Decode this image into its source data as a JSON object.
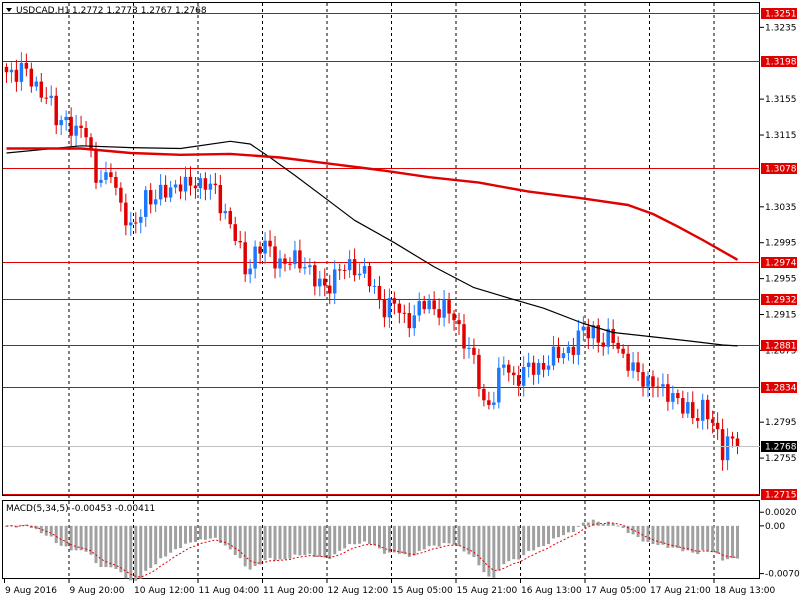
{
  "header": {
    "symbol": "USDCAD,H1",
    "ohlc": "1.2772 1.2773 1.2767 1.2768"
  },
  "macd_label": "MACD(5,34,5) -0.00453 -0.00411",
  "colors": {
    "bull": "#1e78ff",
    "bear": "#e00000",
    "level": "#e00000",
    "ma_fast": "#000000",
    "ma_slow": "#e00000",
    "grid": "#000000",
    "macd_hist": "#a0a0a0",
    "macd_signal": "#e00000"
  },
  "chart_data": [
    {
      "type": "candlestick",
      "title": "USDCAD,H1",
      "ylim": [
        1.2715,
        1.3261
      ],
      "y_ticks": [
        {
          "value": 1.3235,
          "label": "1.3235"
        },
        {
          "value": 1.3155,
          "label": "1.3155"
        },
        {
          "value": 1.3115,
          "label": "1.3115"
        },
        {
          "value": 1.3035,
          "label": "1.3035"
        },
        {
          "value": 1.2995,
          "label": "1.2995"
        },
        {
          "value": 1.2955,
          "label": "1.2955"
        },
        {
          "value": 1.2915,
          "label": "1.2915"
        },
        {
          "value": 1.2875,
          "label": "1.2875"
        },
        {
          "value": 1.2795,
          "label": "1.2795"
        },
        {
          "value": 1.2755,
          "label": "1.2755"
        }
      ],
      "levels": [
        {
          "value": 1.3251,
          "label": "1.3251"
        },
        {
          "value": 1.3198,
          "label": "1.3198"
        },
        {
          "value": 1.3078,
          "label": "1.3078"
        },
        {
          "value": 1.2974,
          "label": "1.2974"
        },
        {
          "value": 1.2932,
          "label": "1.2932"
        },
        {
          "value": 1.2881,
          "label": "1.2881"
        },
        {
          "value": 1.2834,
          "label": "1.2834"
        },
        {
          "value": 1.2715,
          "label": "1.2715"
        }
      ],
      "current_price": {
        "value": 1.2768,
        "label": "1.2768"
      },
      "x_labels": [
        "9 Aug 2016",
        "9 Aug 20:00",
        "10 Aug 12:00",
        "11 Aug 04:00",
        "11 Aug 20:00",
        "12 Aug 12:00",
        "15 Aug 05:00",
        "15 Aug 21:00",
        "16 Aug 13:00",
        "17 Aug 05:00",
        "17 Aug 21:00",
        "18 Aug 13:00"
      ],
      "close_path": [
        [
          0,
          1.3185
        ],
        [
          3,
          1.3188
        ],
        [
          5,
          1.3175
        ],
        [
          8,
          1.316
        ],
        [
          10,
          1.313
        ],
        [
          12,
          1.3135
        ],
        [
          14,
          1.3115
        ],
        [
          16,
          1.312
        ],
        [
          18,
          1.307
        ],
        [
          20,
          1.306
        ],
        [
          21,
          1.3075
        ],
        [
          23,
          1.304
        ],
        [
          25,
          1.3005
        ],
        [
          26,
          1.3015
        ],
        [
          28,
          1.305
        ],
        [
          30,
          1.304
        ],
        [
          32,
          1.3055
        ],
        [
          34,
          1.306
        ],
        [
          36,
          1.3055
        ],
        [
          38,
          1.3065
        ],
        [
          40,
          1.306
        ],
        [
          42,
          1.305
        ],
        [
          44,
          1.303
        ],
        [
          46,
          1.3
        ],
        [
          48,
          1.2965
        ],
        [
          50,
          1.2985
        ],
        [
          52,
          1.299
        ],
        [
          54,
          1.298
        ],
        [
          56,
          1.297
        ],
        [
          58,
          1.2975
        ],
        [
          60,
          1.2975
        ],
        [
          62,
          1.295
        ],
        [
          64,
          1.2945
        ],
        [
          66,
          1.296
        ],
        [
          68,
          1.2965
        ],
        [
          70,
          1.297
        ],
        [
          72,
          1.296
        ],
        [
          74,
          1.294
        ],
        [
          76,
          1.2925
        ],
        [
          78,
          1.2925
        ],
        [
          80,
          1.291
        ],
        [
          82,
          1.2915
        ],
        [
          84,
          1.2925
        ],
        [
          86,
          1.2925
        ],
        [
          88,
          1.292
        ],
        [
          90,
          1.291
        ],
        [
          92,
          1.289
        ],
        [
          94,
          1.286
        ],
        [
          96,
          1.2815
        ],
        [
          98,
          1.2825
        ],
        [
          100,
          1.286
        ],
        [
          102,
          1.2845
        ],
        [
          104,
          1.285
        ],
        [
          106,
          1.2855
        ],
        [
          108,
          1.286
        ],
        [
          110,
          1.2865
        ],
        [
          112,
          1.2875
        ],
        [
          114,
          1.288
        ],
        [
          116,
          1.2895
        ],
        [
          118,
          1.29
        ],
        [
          120,
          1.288
        ],
        [
          122,
          1.289
        ],
        [
          124,
          1.287
        ],
        [
          126,
          1.285
        ],
        [
          128,
          1.2845
        ],
        [
          130,
          1.284
        ],
        [
          132,
          1.2825
        ],
        [
          134,
          1.283
        ],
        [
          136,
          1.281
        ],
        [
          138,
          1.28
        ],
        [
          140,
          1.2815
        ],
        [
          142,
          1.279
        ],
        [
          144,
          1.2765
        ],
        [
          145,
          1.278
        ],
        [
          147,
          1.2768
        ]
      ],
      "ma_fast": [
        [
          0,
          1.3095
        ],
        [
          15,
          1.3103
        ],
        [
          25,
          1.3101
        ],
        [
          35,
          1.31
        ],
        [
          45,
          1.3108
        ],
        [
          49,
          1.3105
        ],
        [
          53,
          1.309
        ],
        [
          58,
          1.307
        ],
        [
          64,
          1.3045
        ],
        [
          70,
          1.302
        ],
        [
          78,
          1.2995
        ],
        [
          86,
          1.2968
        ],
        [
          94,
          1.2945
        ],
        [
          100,
          1.2935
        ],
        [
          108,
          1.2922
        ],
        [
          116,
          1.2905
        ],
        [
          122,
          1.2895
        ],
        [
          130,
          1.289
        ],
        [
          138,
          1.2885
        ],
        [
          144,
          1.2881
        ],
        [
          147,
          1.288
        ]
      ],
      "ma_slow": [
        [
          0,
          1.31
        ],
        [
          15,
          1.31
        ],
        [
          25,
          1.3095
        ],
        [
          35,
          1.3093
        ],
        [
          45,
          1.3094
        ],
        [
          55,
          1.309
        ],
        [
          65,
          1.3083
        ],
        [
          75,
          1.3076
        ],
        [
          85,
          1.3068
        ],
        [
          95,
          1.3062
        ],
        [
          105,
          1.3052
        ],
        [
          115,
          1.3045
        ],
        [
          125,
          1.3037
        ],
        [
          130,
          1.3027
        ],
        [
          135,
          1.3013
        ],
        [
          140,
          1.2998
        ],
        [
          147,
          1.2976
        ]
      ]
    },
    {
      "type": "bar",
      "title": "MACD(5,34,5) -0.00453 -0.00411",
      "ylim": [
        -0.0075,
        0.0035
      ],
      "y_ticks": [
        {
          "value": 0.002,
          "label": "0.0020"
        },
        {
          "value": 0.0,
          "label": "0.00"
        },
        {
          "value": -0.007,
          "label": "-0.00703"
        }
      ]
    }
  ]
}
